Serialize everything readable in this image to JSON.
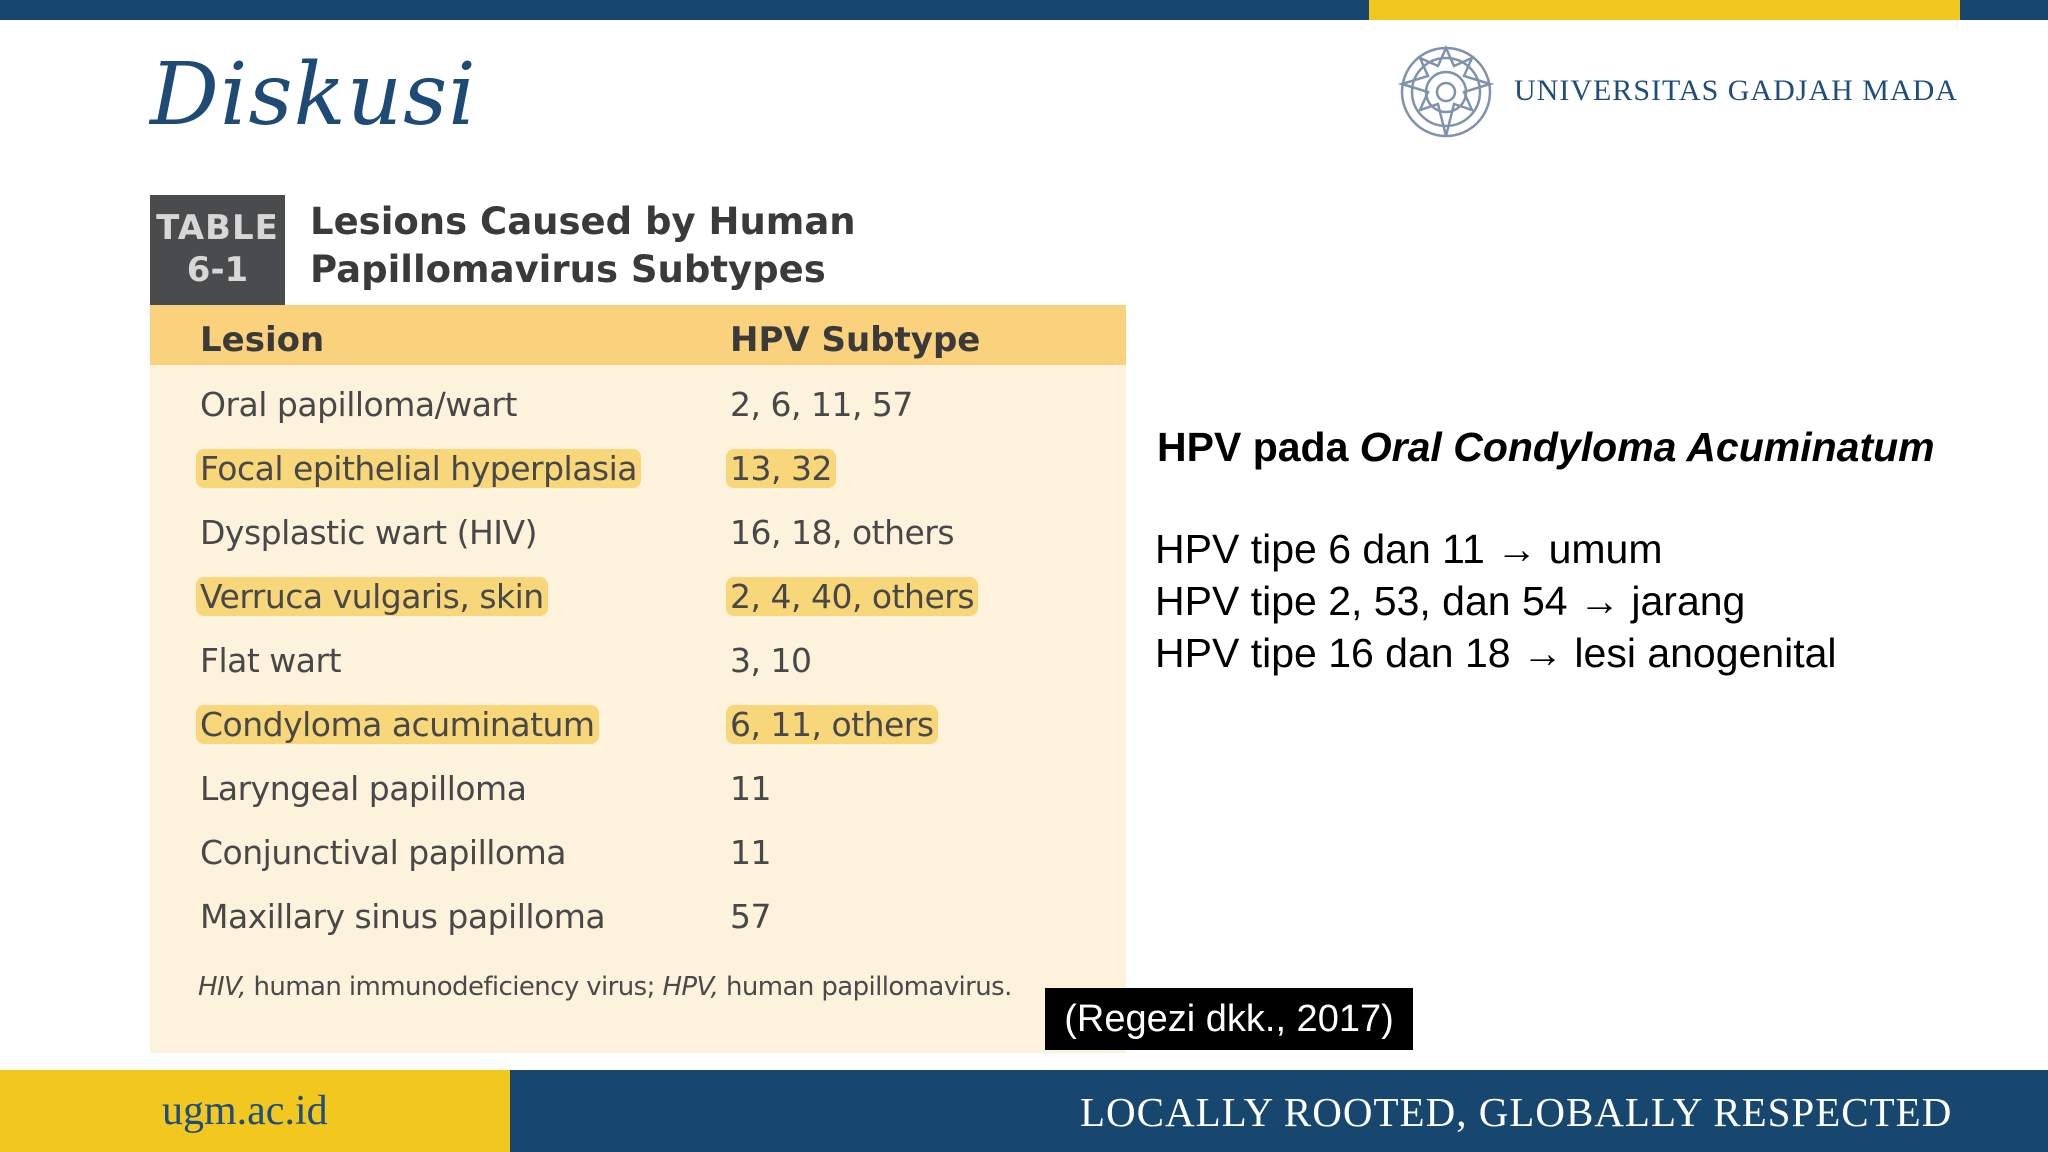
{
  "slide": {
    "title": "Diskusi",
    "university": "UNIVERSITAS GADJAH MADA"
  },
  "table": {
    "label_line1": "TABLE",
    "label_line2": "6-1",
    "title": "Lesions Caused by Human Papillomavirus Subtypes",
    "columns": [
      "Lesion",
      "HPV Subtype"
    ],
    "rows": [
      {
        "lesion": "Oral papilloma/wart",
        "subtype": "2, 6, 11, 57",
        "highlighted": false
      },
      {
        "lesion": "Focal epithelial hyperplasia",
        "subtype": "13, 32",
        "highlighted": true
      },
      {
        "lesion": "Dysplastic wart (HIV)",
        "subtype": "16, 18, others",
        "highlighted": false
      },
      {
        "lesion": "Verruca vulgaris, skin",
        "subtype": "2, 4, 40, others",
        "highlighted": true
      },
      {
        "lesion": "Flat wart",
        "subtype": "3, 10",
        "highlighted": false
      },
      {
        "lesion": "Condyloma acuminatum",
        "subtype": "6, 11, others",
        "highlighted": true
      },
      {
        "lesion": "Laryngeal papilloma",
        "subtype": "11",
        "highlighted": false
      },
      {
        "lesion": "Conjunctival papilloma",
        "subtype": "11",
        "highlighted": false
      },
      {
        "lesion": "Maxillary sinus papilloma",
        "subtype": "57",
        "highlighted": false
      }
    ],
    "footnote_abbr1": "HIV,",
    "footnote_text1": " human immunodeficiency virus; ",
    "footnote_abbr2": "HPV,",
    "footnote_text2": " human papillomavirus."
  },
  "discussion": {
    "heading_prefix": "HPV pada ",
    "heading_italic": "Oral Condyloma Acuminatum",
    "points": [
      {
        "text": "HPV tipe 6 dan 11",
        "result": "umum"
      },
      {
        "text": "HPV tipe 2, 53, dan 54",
        "result": "jarang"
      },
      {
        "text": "HPV tipe 16 dan 18",
        "result": "lesi anogenital"
      }
    ],
    "citation": "(Regezi dkk., 2017)"
  },
  "footer": {
    "url": "ugm.ac.id",
    "tagline": "LOCALLY ROOTED, GLOBALLY RESPECTED"
  },
  "colors": {
    "navy": "#17466f",
    "gold": "#f2c71e",
    "table_header": "#fad17c",
    "table_body": "#fdf3dc",
    "highlight": "#f7d77a"
  }
}
